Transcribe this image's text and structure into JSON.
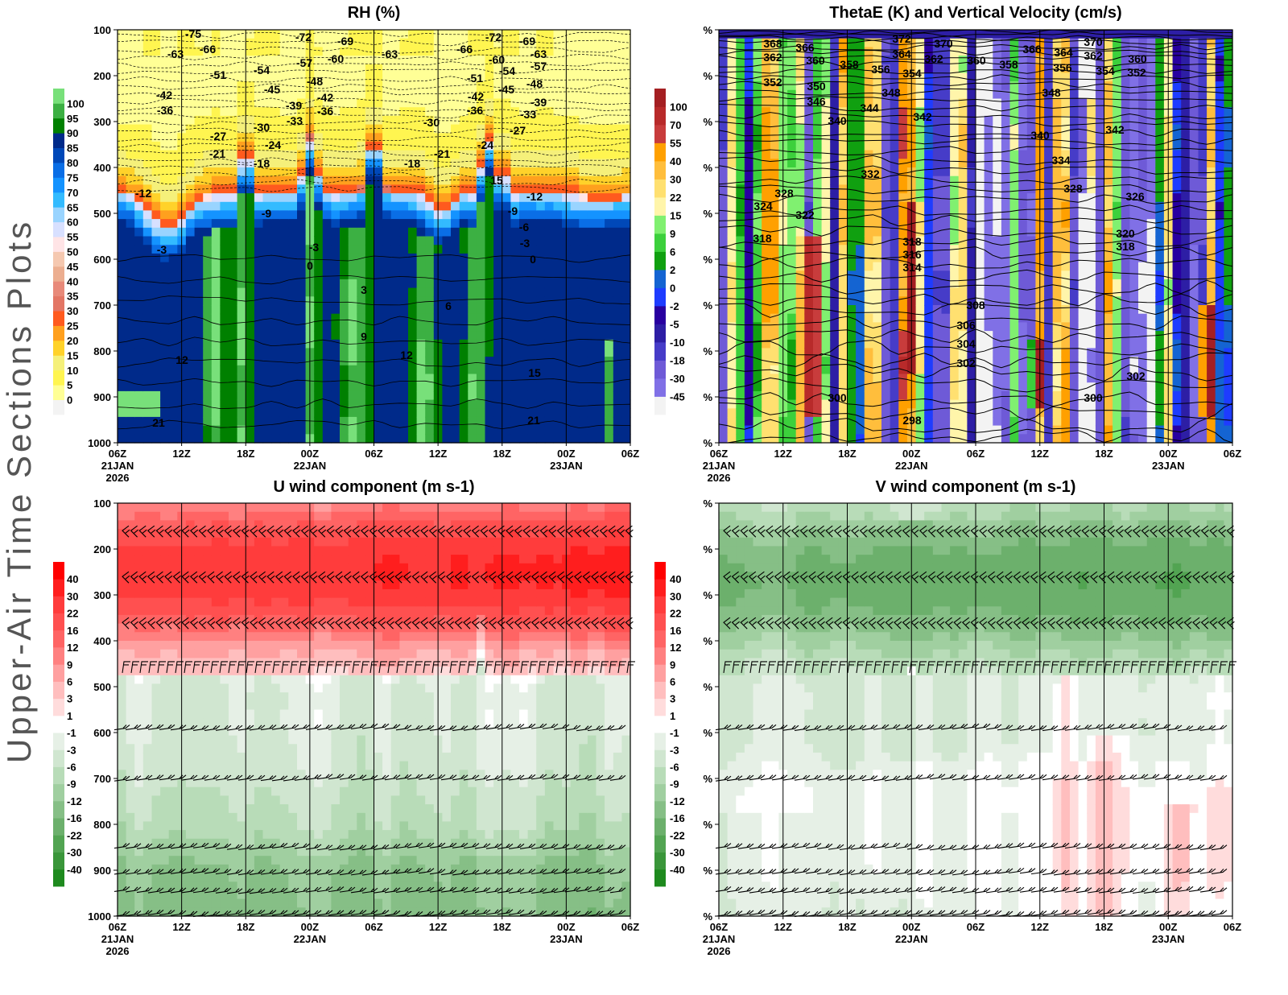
{
  "page_title": "Upper-Air Time Sections Plots",
  "x_axis": {
    "ticks": [
      "06Z",
      "12Z",
      "18Z",
      "00Z",
      "06Z",
      "12Z",
      "18Z",
      "00Z",
      "06Z"
    ],
    "dates": [
      {
        "tick": 0,
        "label": "21JAN",
        "year": "2026"
      },
      {
        "tick": 3,
        "label": "22JAN"
      },
      {
        "tick": 7,
        "label": "23JAN"
      }
    ]
  },
  "chart_data": [
    {
      "id": "rh",
      "type": "heatmap",
      "title": "RH (%)",
      "y_ticks": [
        "100",
        "200",
        "300",
        "400",
        "500",
        "600",
        "700",
        "800",
        "900",
        "1000"
      ],
      "ylim": [
        1000,
        100
      ],
      "colorbar": {
        "levels": [
          "0",
          "5",
          "10",
          "15",
          "20",
          "25",
          "30",
          "35",
          "40",
          "45",
          "50",
          "55",
          "60",
          "65",
          "70",
          "75",
          "80",
          "85",
          "90",
          "95",
          "100"
        ],
        "colors": [
          "#f3f3f3",
          "#ffff96",
          "#fff550",
          "#f5f07a",
          "#ffd22a",
          "#ffa01e",
          "#ff5a1e",
          "#e37665",
          "#e88a7a",
          "#ecae90",
          "#f5c8b0",
          "#ffe4e6",
          "#d8e0ff",
          "#99d4ff",
          "#33bbff",
          "#1493ff",
          "#0a6ee6",
          "#0048b8",
          "#002a8a",
          "#008000",
          "#3cb043",
          "#78e07a"
        ]
      },
      "contour_labels": [
        "-75",
        "-63",
        "-66",
        "-72",
        "-69",
        "-63",
        "-66",
        "-72",
        "-69",
        "-63",
        "-51",
        "-54",
        "-57",
        "-60",
        "-60",
        "-54",
        "-57",
        "-51",
        "-48",
        "-48",
        "-42",
        "-36",
        "-45",
        "-42",
        "-39",
        "-36",
        "-33",
        "-42",
        "-36",
        "-45",
        "-39",
        "-33",
        "-30",
        "-27",
        "-21",
        "-30",
        "-24",
        "-18",
        "-18",
        "-21",
        "-24",
        "-27",
        "15",
        "-12",
        "-12",
        "-9",
        "-9",
        "-6",
        "-3",
        "-3",
        "-3",
        "0",
        "0",
        "3",
        "6",
        "9",
        "12",
        "12",
        "15",
        "21",
        "21"
      ]
    },
    {
      "id": "thetae",
      "type": "heatmap",
      "title": "ThetaE (K) and Vertical Velocity (cm/s)",
      "y_ticks": [
        "%",
        "%",
        "%",
        "%",
        "%",
        "%",
        "%",
        "%",
        "%",
        "%"
      ],
      "ylim": [
        1000,
        100
      ],
      "colorbar": {
        "levels": [
          "-45",
          "-30",
          "-18",
          "-10",
          "-5",
          "-2",
          "0",
          "2",
          "6",
          "9",
          "15",
          "22",
          "30",
          "40",
          "55",
          "70",
          "100"
        ],
        "colors": [
          "#f3f3f3",
          "#8070e6",
          "#6e5ad7",
          "#463cc8",
          "#2d1ea5",
          "#2800a0",
          "#1e3cff",
          "#1464d2",
          "#10a010",
          "#3cd03c",
          "#80f070",
          "#fff5aa",
          "#ffe070",
          "#ffbe3c",
          "#ffa000",
          "#c83c3c",
          "#b82a2a",
          "#a41f22"
        ]
      },
      "contour_labels": [
        "368",
        "366",
        "362",
        "360",
        "358",
        "356",
        "372",
        "364",
        "362",
        "354",
        "370",
        "360",
        "358",
        "366",
        "364",
        "356",
        "370",
        "362",
        "354",
        "360",
        "352",
        "352",
        "350",
        "346",
        "348",
        "344",
        "340",
        "342",
        "348",
        "342",
        "340",
        "334",
        "332",
        "328",
        "328",
        "324",
        "322",
        "326",
        "318",
        "318",
        "316",
        "314",
        "320",
        "318",
        "308",
        "306",
        "304",
        "302",
        "302",
        "300",
        "298",
        "300"
      ]
    },
    {
      "id": "u",
      "type": "heatmap",
      "title": "U wind component (m s-1)",
      "y_ticks": [
        "100",
        "200",
        "300",
        "400",
        "500",
        "600",
        "700",
        "800",
        "900",
        "1000"
      ],
      "ylim": [
        1000,
        100
      ],
      "overlay": "wind barbs",
      "colorbar": {
        "levels": [
          "-40",
          "-30",
          "-22",
          "-16",
          "-12",
          "-9",
          "-6",
          "-3",
          "-1",
          "1",
          "3",
          "6",
          "9",
          "12",
          "16",
          "22",
          "30",
          "40"
        ],
        "colors": [
          "#1e8a1e",
          "#3a963a",
          "#52a452",
          "#6cb06c",
          "#86bf86",
          "#a0cfa0",
          "#b8dcb8",
          "#d0e6d0",
          "#e6f0e6",
          "#ffffff",
          "#ffdcdc",
          "#ffbebe",
          "#ffa0a0",
          "#ff8080",
          "#ff6464",
          "#ff5050",
          "#ff3c3c",
          "#ff1e1e",
          "#ff0000"
        ]
      }
    },
    {
      "id": "v",
      "type": "heatmap",
      "title": "V wind component (m s-1)",
      "y_ticks": [
        "%",
        "%",
        "%",
        "%",
        "%",
        "%",
        "%",
        "%",
        "%",
        "%"
      ],
      "ylim": [
        1000,
        100
      ],
      "overlay": "wind barbs",
      "colorbar": {
        "levels": [
          "-40",
          "-30",
          "-22",
          "-16",
          "-12",
          "-9",
          "-6",
          "-3",
          "-1",
          "1",
          "3",
          "6",
          "9",
          "12",
          "16",
          "22",
          "30",
          "40"
        ],
        "colors": [
          "#1e8a1e",
          "#3a963a",
          "#52a452",
          "#6cb06c",
          "#86bf86",
          "#a0cfa0",
          "#b8dcb8",
          "#d0e6d0",
          "#e6f0e6",
          "#ffffff",
          "#ffdcdc",
          "#ffbebe",
          "#ffa0a0",
          "#ff8080",
          "#ff6464",
          "#ff5050",
          "#ff3c3c",
          "#ff1e1e",
          "#ff0000"
        ]
      }
    }
  ]
}
